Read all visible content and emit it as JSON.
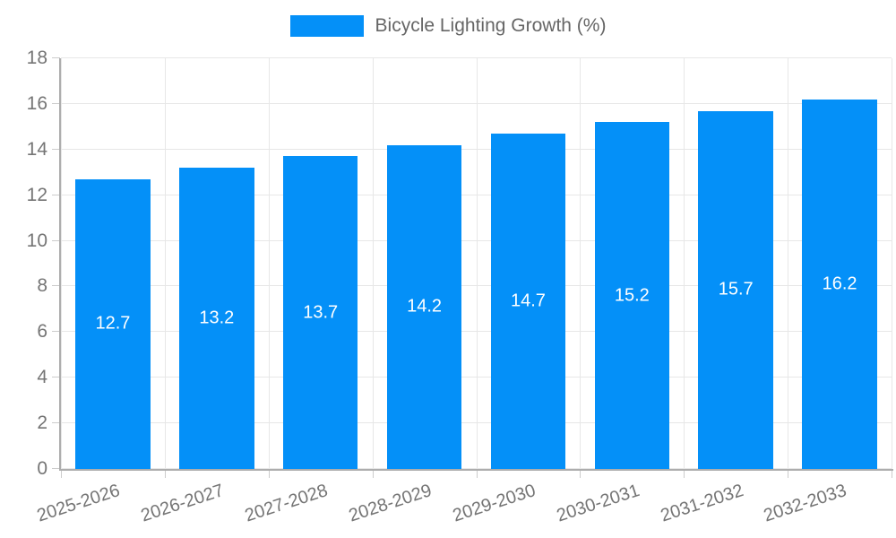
{
  "legend": {
    "label": "Bicycle Lighting Growth (%)",
    "swatch_color": "#0490F8"
  },
  "chart_data": {
    "type": "bar",
    "title": "Bicycle Lighting Growth (%)",
    "categories": [
      "2025-2026",
      "2026-2027",
      "2027-2028",
      "2028-2029",
      "2029-2030",
      "2030-2031",
      "2031-2032",
      "2032-2033"
    ],
    "values": [
      12.7,
      13.2,
      13.7,
      14.2,
      14.7,
      15.2,
      15.7,
      16.2
    ],
    "value_labels": [
      "12.7",
      "13.2",
      "13.7",
      "14.2",
      "14.7",
      "15.2",
      "15.7",
      "16.2"
    ],
    "xlabel": "",
    "ylabel": "",
    "ylim": [
      0,
      18
    ],
    "ytick_step": 2,
    "ytick_labels": [
      "0",
      "2",
      "4",
      "6",
      "8",
      "10",
      "12",
      "14",
      "16",
      "18"
    ],
    "grid": true,
    "legend_position": "top-center",
    "bar_color": "#0490F8",
    "value_label_color": "#FFFFFF",
    "tick_label_color": "#757575",
    "gridline_color": "#E7E7E7",
    "tick_mark_color": "#CCCCCC",
    "axis_line_color": "#ADADAD"
  }
}
